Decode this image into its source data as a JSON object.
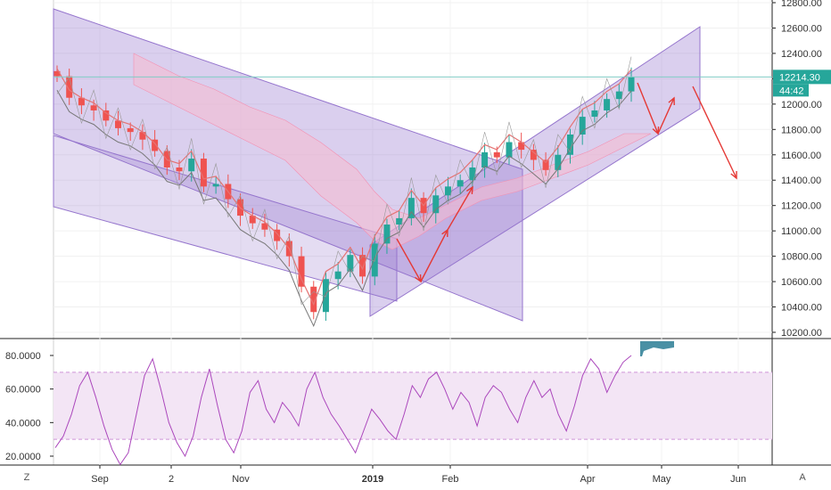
{
  "chart_data": [
    {
      "type": "candlestick",
      "description_series": [
        {
          "name": "",
          "kind": "ohlc",
          "values_y": [
            12220,
            12050,
            11990,
            11950,
            11870,
            11810,
            11780,
            11720,
            11630,
            11500,
            11470,
            11570,
            11350,
            11370,
            11250,
            11120,
            11060,
            11010,
            10920,
            10800,
            10560,
            10360,
            10620,
            10680,
            10810,
            10640,
            10900,
            11050,
            11100,
            11260,
            11140,
            11280,
            11350,
            11400,
            11500,
            11620,
            11580,
            11700,
            11640,
            11560,
            11480,
            11600,
            11760,
            11900,
            11950,
            12040,
            12100,
            12214
          ]
        }
      ],
      "x_ticks": [
        "Sep",
        "2",
        "Nov",
        "2019",
        "Feb",
        "Apr",
        "May",
        "Jun"
      ],
      "y_ticks": [
        "12800.00",
        "12600.00",
        "12400.00",
        "12200.00",
        "12000.00",
        "11800.00",
        "11600.00",
        "11400.00",
        "11200.00",
        "11000.00",
        "10800.00",
        "10600.00",
        "10400.00",
        "10200.00"
      ],
      "ylim": [
        10200,
        12800
      ],
      "last_price": "12214.30",
      "countdown": "44:42",
      "colors": {
        "up": "#26a69a",
        "down": "#ef5350",
        "channel": "#9575cd",
        "arrow": "#e53935",
        "price_tag": "#26a69a"
      }
    },
    {
      "type": "line",
      "name": "",
      "y_ticks": [
        "80.0000",
        "60.0000",
        "40.0000",
        "20.0000"
      ],
      "ylim": [
        12,
        88
      ],
      "band": [
        30,
        70
      ],
      "values": [
        25,
        32,
        45,
        62,
        70,
        55,
        38,
        24,
        15,
        22,
        45,
        68,
        78,
        60,
        40,
        28,
        20,
        32,
        55,
        72,
        50,
        30,
        22,
        35,
        58,
        65,
        48,
        40,
        52,
        46,
        38,
        60,
        70,
        55,
        45,
        38,
        30,
        22,
        35,
        48,
        42,
        35,
        30,
        45,
        62,
        55,
        66,
        70,
        60,
        48,
        58,
        52,
        38,
        55,
        62,
        58,
        48,
        40,
        55,
        65,
        55,
        60,
        45,
        35,
        50,
        68,
        78,
        72,
        58,
        68,
        76,
        80
      ],
      "colors": {
        "line": "#ab47bc",
        "band": "#f3e5f5"
      }
    }
  ],
  "buttons": {
    "left": "Z",
    "right": "A"
  }
}
